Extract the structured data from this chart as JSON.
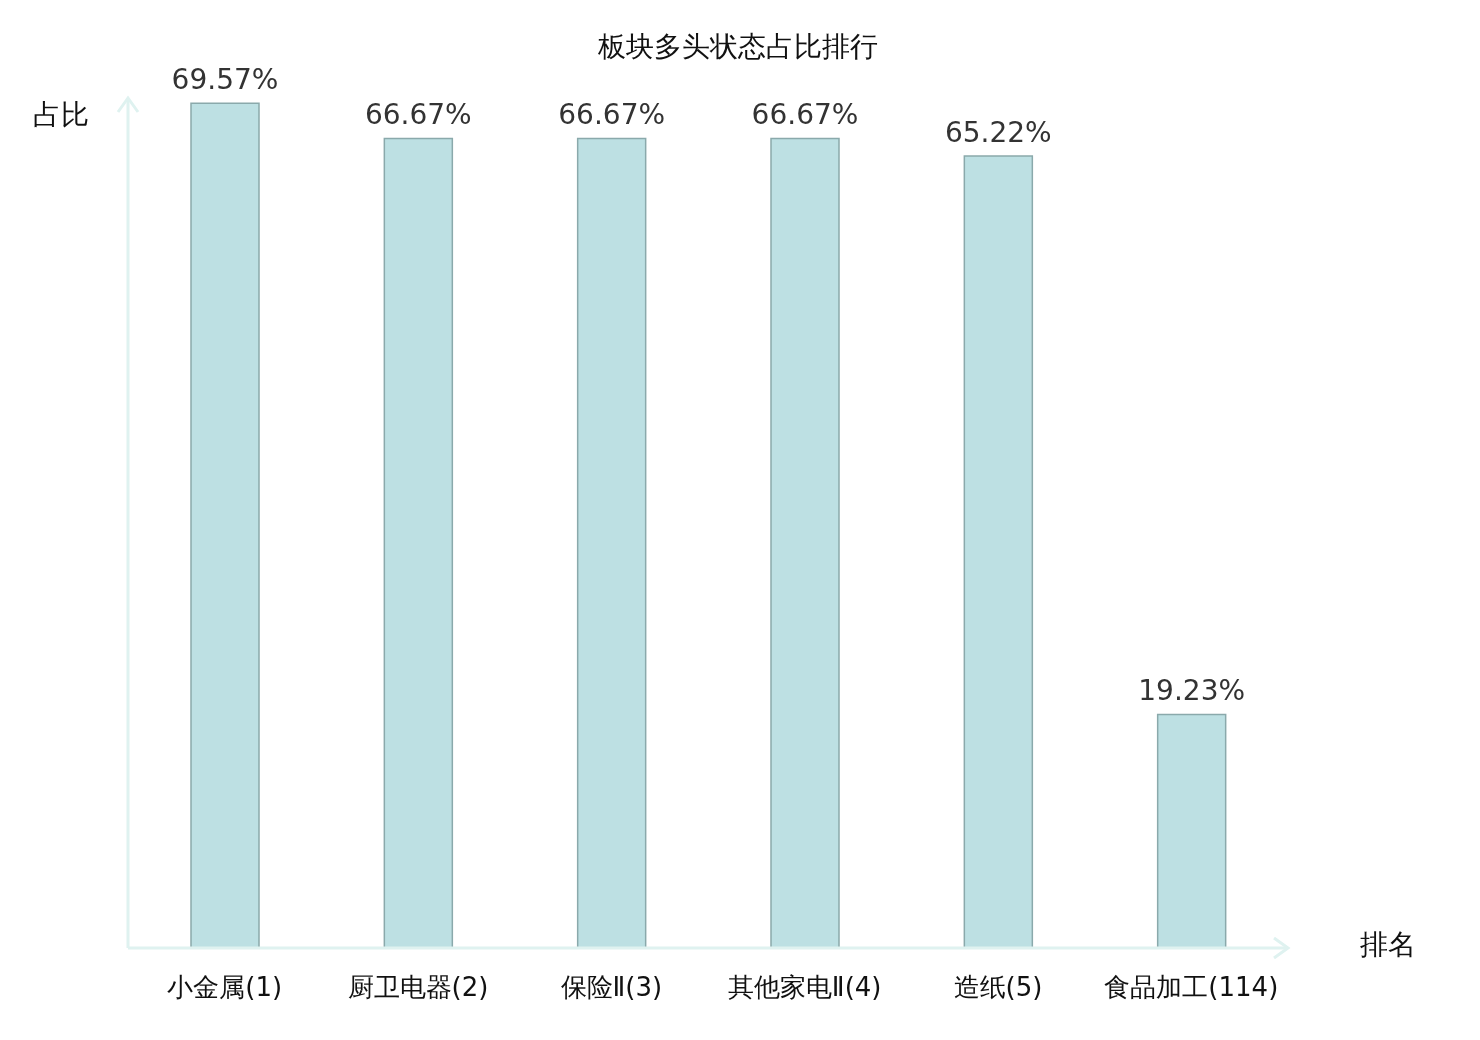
{
  "chart_data": {
    "type": "bar",
    "title": "板块多头状态占比排行",
    "xlabel": "排名",
    "ylabel": "占比",
    "categories": [
      "小金属(1)",
      "厨卫电器(2)",
      "保险Ⅱ(3)",
      "其他家电Ⅱ(4)",
      "造纸(5)",
      "食品加工(114)"
    ],
    "values": [
      69.57,
      66.67,
      66.67,
      66.67,
      65.22,
      19.23
    ],
    "value_labels": [
      "69.57%",
      "66.67%",
      "66.67%",
      "66.67%",
      "65.22%",
      "19.23%"
    ],
    "color": "#bde0e3",
    "ylim": [
      0,
      70
    ]
  }
}
